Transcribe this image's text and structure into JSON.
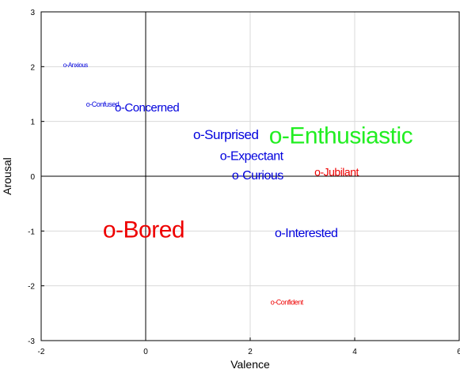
{
  "chart_data": {
    "type": "scatter",
    "xlabel": "Valence",
    "ylabel": "Arousal",
    "xlim": [
      -2,
      6
    ],
    "ylim": [
      -3,
      3
    ],
    "xticks": [
      -2,
      0,
      2,
      4,
      6
    ],
    "yticks": [
      -3,
      -2,
      -1,
      0,
      1,
      2,
      3
    ],
    "grid": true,
    "labels": [
      "o-Anxious",
      "o-Confused",
      "o-Concerned",
      "o-Surprised",
      "o-Enthusiastic",
      "o-Expectant",
      "o-Curious",
      "o-Jubilant",
      "o-Bored",
      "o-Interested",
      "o-Confident"
    ],
    "x": [
      -1.58,
      -1.14,
      -0.59,
      0.91,
      2.36,
      1.42,
      1.65,
      3.23,
      -0.82,
      2.47,
      2.39
    ],
    "y": [
      2.02,
      1.3,
      1.24,
      0.74,
      0.71,
      0.36,
      0.0,
      0.06,
      -1.0,
      -1.05,
      -2.31
    ],
    "sizes": [
      8,
      9,
      15,
      17,
      30,
      16,
      16,
      14,
      30,
      16,
      9
    ],
    "colors": [
      "#0000dd",
      "#0000dd",
      "#0000dd",
      "#0000dd",
      "#22ee22",
      "#0000dd",
      "#0000dd",
      "#ee0000",
      "#ee0000",
      "#0000dd",
      "#ee0000"
    ]
  }
}
